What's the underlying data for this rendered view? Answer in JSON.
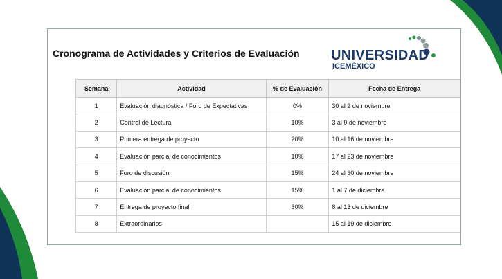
{
  "header": {
    "title": "Cronograma de Actividades y Criterios de Evaluación",
    "logo": "UNIVERSIDAD",
    "logo_sub": [
      "ICE",
      "MÉXICO"
    ]
  },
  "table": {
    "columns": [
      "Semana",
      "Actividad",
      "% de Evaluación",
      "Fecha de Entrega"
    ],
    "rows": [
      [
        "1",
        "Evaluación diagnóstica / Foro de Expectativas",
        "0%",
        "30 al 2 de noviembre"
      ],
      [
        "2",
        "Control de Lectura",
        "10%",
        "3 al 9 de noviembre"
      ],
      [
        "3",
        "Primera entrega de proyecto",
        "20%",
        "10 al 16 de noviembre"
      ],
      [
        "4",
        "Evaluación parcial de conocimientos",
        "10%",
        "17 al 23 de noviembre"
      ],
      [
        "5",
        "Foro de discusión",
        "15%",
        "24 al 30 de noviembre"
      ],
      [
        "6",
        "Evaluación parcial de conocimientos",
        "15%",
        "1 al 7 de diciembre"
      ],
      [
        "7",
        "Entrega de proyecto final",
        "30%",
        "8 al 13 de diciembre"
      ],
      [
        "8",
        "Extraordinarios",
        null,
        "15 al 19 de diciembre"
      ]
    ]
  }
}
